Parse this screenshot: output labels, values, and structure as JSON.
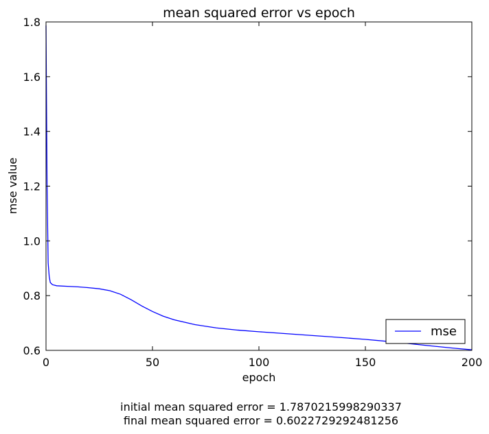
{
  "chart_data": {
    "type": "line",
    "title": "mean squared error vs epoch",
    "xlabel": "epoch",
    "ylabel": "mse value",
    "xlim": [
      0,
      200
    ],
    "ylim": [
      0.6,
      1.8
    ],
    "xticks": [
      0,
      50,
      100,
      150,
      200
    ],
    "yticks": [
      0.6,
      0.8,
      1.0,
      1.2,
      1.4,
      1.6,
      1.8
    ],
    "xtick_labels": [
      "0",
      "50",
      "100",
      "150",
      "200"
    ],
    "ytick_labels": [
      "0.6",
      "0.8",
      "1.0",
      "1.2",
      "1.4",
      "1.6",
      "1.8"
    ],
    "grid": false,
    "legend_position": "bottom-right",
    "series": [
      {
        "name": "mse",
        "color": "#0000ff",
        "x": [
          0,
          0.5,
          1,
          1.5,
          2,
          3,
          4,
          5,
          10,
          15,
          20,
          25,
          30,
          35,
          40,
          45,
          50,
          55,
          60,
          70,
          80,
          90,
          100,
          120,
          140,
          150,
          160,
          170,
          180,
          190,
          200
        ],
        "y": [
          1.787,
          1.2,
          0.92,
          0.87,
          0.848,
          0.84,
          0.838,
          0.836,
          0.834,
          0.832,
          0.829,
          0.825,
          0.818,
          0.805,
          0.785,
          0.762,
          0.742,
          0.725,
          0.712,
          0.694,
          0.682,
          0.674,
          0.668,
          0.657,
          0.646,
          0.64,
          0.633,
          0.625,
          0.617,
          0.609,
          0.602
        ]
      }
    ]
  },
  "caption": {
    "line1": "initial mean squared error = 1.7870215998290337",
    "line2": "final mean squared error = 0.6022729292481256"
  }
}
